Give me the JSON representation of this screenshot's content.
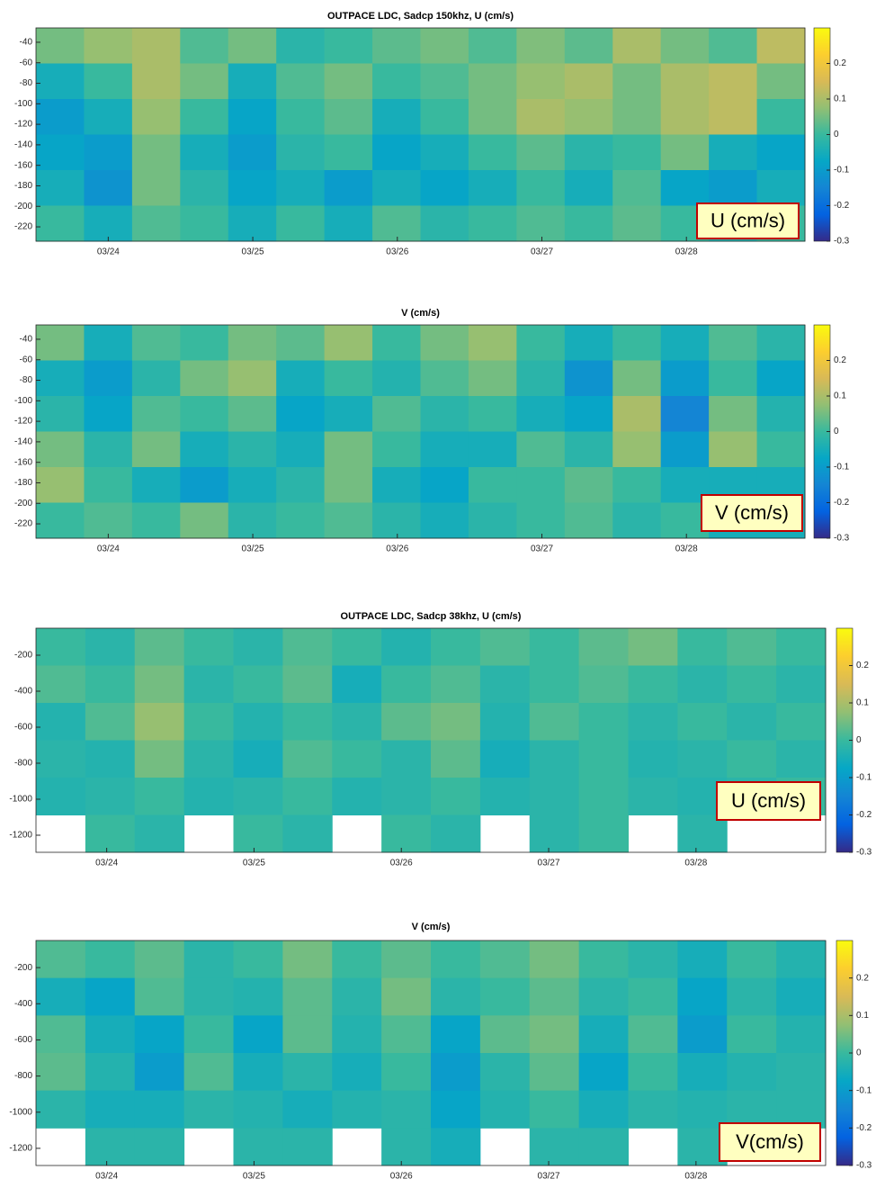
{
  "chart_data": [
    {
      "type": "heatmap",
      "title": "OUTPACE LDC, Sadcp 150khz, U (cm/s)",
      "annotation": "U (cm/s)",
      "colormap": "parula",
      "xlim": [
        23.5,
        28.82
      ],
      "xticks": [
        {
          "value": 24,
          "label": "03/24"
        },
        {
          "value": 25,
          "label": "03/25"
        },
        {
          "value": 26,
          "label": "03/26"
        },
        {
          "value": 27,
          "label": "03/27"
        },
        {
          "value": 28,
          "label": "03/28"
        }
      ],
      "ylim": [
        -234,
        -26
      ],
      "yticks": [
        -40,
        -60,
        -80,
        -100,
        -120,
        -140,
        -160,
        -180,
        -200,
        -220
      ],
      "clim": [
        -0.3,
        0.3
      ],
      "cticks": [
        0.2,
        0.1,
        0,
        -0.1,
        -0.2,
        -0.3
      ],
      "values": [
        [
          0.05,
          0.08,
          0.1,
          0.02,
          0.05,
          -0.02,
          0.0,
          0.03,
          0.05,
          0.02,
          0.06,
          0.03,
          0.1,
          0.05,
          0.02,
          0.12
        ],
        [
          -0.05,
          0.0,
          0.1,
          0.05,
          -0.05,
          0.02,
          0.05,
          0.0,
          0.02,
          0.05,
          0.08,
          0.1,
          0.05,
          0.1,
          0.12,
          0.05
        ],
        [
          -0.1,
          -0.05,
          0.08,
          0.0,
          -0.08,
          0.0,
          0.03,
          -0.05,
          0.0,
          0.05,
          0.1,
          0.08,
          0.05,
          0.1,
          0.12,
          0.0
        ],
        [
          -0.08,
          -0.1,
          0.05,
          -0.05,
          -0.1,
          -0.02,
          0.0,
          -0.08,
          -0.05,
          0.0,
          0.03,
          -0.02,
          0.0,
          0.05,
          -0.05,
          -0.08
        ],
        [
          -0.05,
          -0.12,
          0.05,
          -0.02,
          -0.08,
          -0.05,
          -0.1,
          -0.05,
          -0.08,
          -0.05,
          0.0,
          -0.05,
          0.02,
          -0.08,
          -0.1,
          -0.05
        ],
        [
          0.0,
          -0.05,
          0.02,
          0.0,
          -0.05,
          0.0,
          -0.05,
          0.02,
          -0.02,
          0.0,
          0.02,
          0.0,
          0.03,
          0.0,
          -0.03,
          0.0
        ]
      ]
    },
    {
      "type": "heatmap",
      "title": "V (cm/s)",
      "annotation": "V (cm/s)",
      "colormap": "parula",
      "xlim": [
        23.5,
        28.82
      ],
      "xticks": [
        {
          "value": 24,
          "label": "03/24"
        },
        {
          "value": 25,
          "label": "03/25"
        },
        {
          "value": 26,
          "label": "03/26"
        },
        {
          "value": 27,
          "label": "03/27"
        },
        {
          "value": 28,
          "label": "03/28"
        }
      ],
      "ylim": [
        -234,
        -26
      ],
      "yticks": [
        -40,
        -60,
        -80,
        -100,
        -120,
        -140,
        -160,
        -180,
        -200,
        -220
      ],
      "clim": [
        -0.3,
        0.3
      ],
      "cticks": [
        0.2,
        0.1,
        0,
        -0.1,
        -0.2,
        -0.3
      ],
      "values": [
        [
          0.05,
          -0.05,
          0.02,
          0.0,
          0.05,
          0.03,
          0.08,
          0.0,
          0.05,
          0.08,
          0.0,
          -0.05,
          0.0,
          -0.05,
          0.02,
          -0.02
        ],
        [
          -0.05,
          -0.1,
          -0.02,
          0.05,
          0.08,
          -0.05,
          0.0,
          -0.03,
          0.02,
          0.05,
          -0.02,
          -0.12,
          0.05,
          -0.1,
          0.0,
          -0.08
        ],
        [
          -0.02,
          -0.08,
          0.02,
          0.0,
          0.03,
          -0.08,
          -0.05,
          0.02,
          -0.02,
          0.0,
          -0.05,
          -0.08,
          0.1,
          -0.15,
          0.05,
          -0.03
        ],
        [
          0.05,
          -0.02,
          0.05,
          -0.05,
          -0.02,
          -0.05,
          0.05,
          0.0,
          -0.05,
          -0.05,
          0.02,
          -0.02,
          0.08,
          -0.1,
          0.08,
          0.0
        ],
        [
          0.08,
          0.0,
          -0.05,
          -0.1,
          -0.05,
          -0.02,
          0.05,
          -0.05,
          -0.08,
          0.0,
          0.0,
          0.03,
          0.0,
          -0.05,
          -0.05,
          -0.05
        ],
        [
          0.0,
          0.02,
          0.0,
          0.05,
          -0.02,
          0.0,
          0.02,
          -0.02,
          -0.05,
          -0.02,
          0.0,
          0.02,
          -0.02,
          0.0,
          -0.05,
          -0.05
        ]
      ]
    },
    {
      "type": "heatmap",
      "title": "OUTPACE LDC, Sadcp 38khz, U (cm/s)",
      "annotation": "U (cm/s)",
      "colormap": "parula",
      "xlim": [
        23.52,
        28.88
      ],
      "xticks": [
        {
          "value": 24,
          "label": "03/24"
        },
        {
          "value": 25,
          "label": "03/25"
        },
        {
          "value": 26,
          "label": "03/26"
        },
        {
          "value": 27,
          "label": "03/27"
        },
        {
          "value": 28,
          "label": "03/28"
        }
      ],
      "ylim": [
        -1295,
        -50
      ],
      "yticks": [
        -200,
        -400,
        -600,
        -800,
        -1000,
        -1200
      ],
      "clim": [
        -0.3,
        0.3
      ],
      "cticks": [
        0.2,
        0.1,
        0,
        -0.1,
        -0.2,
        -0.3
      ],
      "values": [
        [
          0.0,
          -0.02,
          0.03,
          0.0,
          -0.02,
          0.02,
          0.0,
          -0.03,
          0.0,
          0.02,
          0.0,
          0.03,
          0.05,
          0.0,
          0.02,
          0.0
        ],
        [
          0.02,
          0.0,
          0.05,
          -0.02,
          0.0,
          0.03,
          -0.05,
          0.0,
          0.02,
          -0.02,
          0.0,
          0.02,
          0.0,
          -0.02,
          0.0,
          -0.02
        ],
        [
          -0.03,
          0.02,
          0.08,
          0.0,
          -0.03,
          0.0,
          -0.02,
          0.03,
          0.05,
          -0.03,
          0.02,
          0.0,
          -0.02,
          0.0,
          -0.02,
          0.0
        ],
        [
          -0.02,
          -0.03,
          0.05,
          -0.02,
          -0.05,
          0.02,
          0.0,
          -0.02,
          0.03,
          -0.05,
          -0.02,
          0.0,
          -0.03,
          -0.02,
          0.0,
          -0.02
        ],
        [
          -0.03,
          -0.02,
          0.0,
          -0.03,
          -0.02,
          0.0,
          -0.03,
          -0.02,
          0.0,
          -0.03,
          -0.02,
          0.0,
          -0.02,
          -0.03,
          -0.02,
          0.0
        ],
        [
          null,
          0.0,
          -0.02,
          null,
          0.0,
          -0.02,
          null,
          0.0,
          -0.02,
          null,
          -0.02,
          0.0,
          null,
          -0.02,
          null,
          null
        ]
      ]
    },
    {
      "type": "heatmap",
      "title": "V (cm/s)",
      "annotation": "V(cm/s)",
      "colormap": "parula",
      "xlim": [
        23.52,
        28.88
      ],
      "xticks": [
        {
          "value": 24,
          "label": "03/24"
        },
        {
          "value": 25,
          "label": "03/25"
        },
        {
          "value": 26,
          "label": "03/26"
        },
        {
          "value": 27,
          "label": "03/27"
        },
        {
          "value": 28,
          "label": "03/28"
        }
      ],
      "ylim": [
        -1295,
        -50
      ],
      "yticks": [
        -200,
        -400,
        -600,
        -800,
        -1000,
        -1200
      ],
      "clim": [
        -0.3,
        0.3
      ],
      "cticks": [
        0.2,
        0.1,
        0,
        -0.1,
        -0.2,
        -0.3
      ],
      "values": [
        [
          0.02,
          0.0,
          0.03,
          -0.02,
          0.0,
          0.05,
          0.0,
          0.03,
          0.0,
          0.02,
          0.05,
          0.0,
          -0.02,
          -0.05,
          0.0,
          -0.03
        ],
        [
          -0.05,
          -0.08,
          0.02,
          -0.02,
          -0.03,
          0.03,
          -0.02,
          0.05,
          -0.02,
          0.0,
          0.03,
          -0.02,
          0.0,
          -0.08,
          -0.02,
          -0.05
        ],
        [
          0.02,
          -0.05,
          -0.08,
          0.0,
          -0.08,
          0.03,
          -0.03,
          0.02,
          -0.08,
          0.03,
          0.05,
          -0.05,
          0.02,
          -0.1,
          0.0,
          -0.03
        ],
        [
          0.03,
          -0.03,
          -0.1,
          0.02,
          -0.05,
          -0.02,
          -0.05,
          0.0,
          -0.1,
          -0.02,
          0.03,
          -0.08,
          0.0,
          -0.05,
          -0.03,
          -0.02
        ],
        [
          -0.02,
          -0.05,
          -0.05,
          -0.02,
          -0.03,
          -0.05,
          -0.03,
          -0.02,
          -0.08,
          -0.03,
          0.0,
          -0.05,
          -0.02,
          -0.03,
          -0.02,
          -0.02
        ],
        [
          null,
          -0.02,
          -0.02,
          null,
          -0.02,
          -0.02,
          null,
          -0.02,
          -0.05,
          null,
          -0.02,
          -0.02,
          null,
          -0.02,
          null,
          null
        ]
      ]
    }
  ]
}
